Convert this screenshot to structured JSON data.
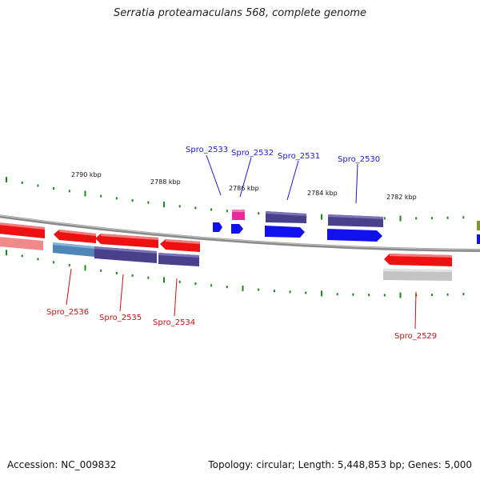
{
  "title": "Serratia proteamaculans 568, complete genome",
  "footer": {
    "accession": "Accession: NC_009832",
    "summary": "Topology: circular; Length: 5,448,853 bp; Genes: 5,000"
  },
  "colors": {
    "backbone": "#8a8a8a",
    "tick": "#1a8a1a",
    "label_top": "#1a1acc",
    "label_bottom": "#cc1111",
    "red_gene": "#ee1111",
    "navy_gene": "#4a3f8a",
    "blue_gene": "#1111ee",
    "pink_gene": "#ee2a9a",
    "steel_gene": "#4f86b8",
    "grey_gene": "#c4c4c4",
    "olive_gene": "#7a9a2a"
  },
  "ruler_labels": [
    {
      "text": "2790 kbp"
    },
    {
      "text": "2788 kbp"
    },
    {
      "text": "2786 kbp"
    },
    {
      "text": "2784 kbp"
    },
    {
      "text": "2782 kbp"
    }
  ],
  "gene_labels_top": [
    {
      "text": "Spro_2533"
    },
    {
      "text": "Spro_2532"
    },
    {
      "text": "Spro_2531"
    },
    {
      "text": "Spro_2530"
    }
  ],
  "gene_labels_bottom": [
    {
      "text": "Spro_2536"
    },
    {
      "text": "Spro_2535"
    },
    {
      "text": "Spro_2534"
    },
    {
      "text": "Spro_2529"
    }
  ]
}
